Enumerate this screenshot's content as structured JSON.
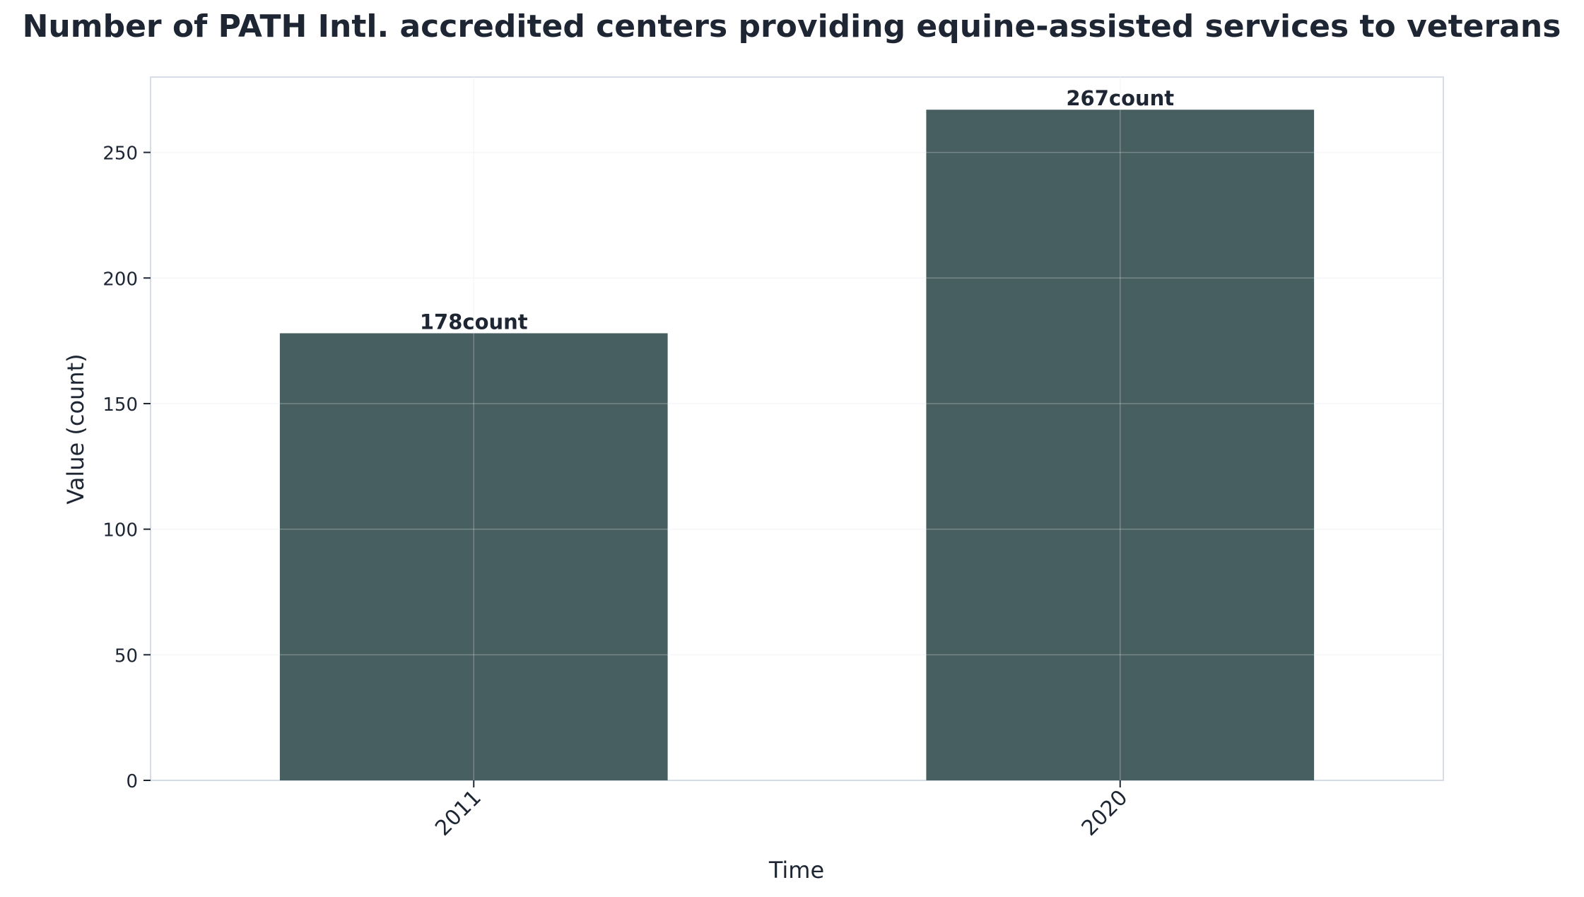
{
  "chart_data": {
    "type": "bar",
    "title": "Number of PATH Intl. accredited centers providing equine-assisted services to veterans",
    "xlabel": "Time",
    "ylabel": "Value (count)",
    "categories": [
      "2011",
      "2020"
    ],
    "values": [
      178,
      267
    ],
    "data_labels": [
      "178count",
      "267count"
    ],
    "ylim": [
      0,
      280
    ],
    "yticks": [
      0,
      50,
      100,
      150,
      200,
      250
    ],
    "grid": true,
    "legend": "none",
    "colors": {
      "bar": "#475f60",
      "text": "#1e2634",
      "axis": "#d6dde6",
      "grid": "#e9edf2"
    }
  }
}
